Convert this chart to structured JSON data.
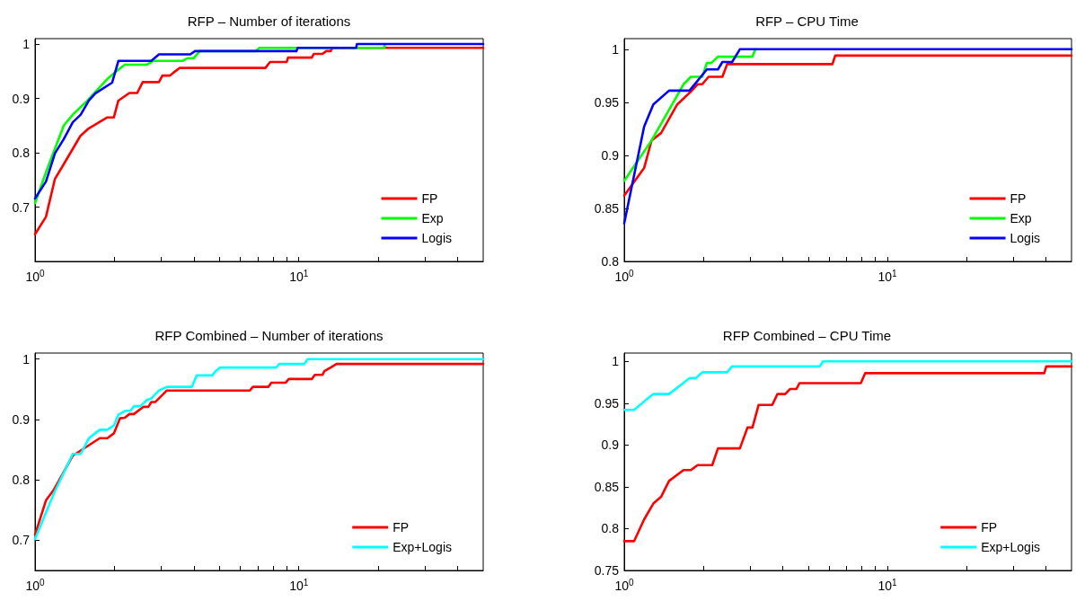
{
  "chart_data": [
    {
      "type": "line",
      "title": "RFP – Number of iterations",
      "legend": "bottom right",
      "marker": "none",
      "grid": false,
      "log": "x",
      "xlim": [
        1,
        50
      ],
      "xticks": [
        {
          "value": 1,
          "label": "10$^{0}$"
        },
        {
          "value": 2,
          "label": null
        },
        {
          "value": 3,
          "label": null
        },
        {
          "value": 4,
          "label": null
        },
        {
          "value": 5,
          "label": null
        },
        {
          "value": 6,
          "label": null
        },
        {
          "value": 7,
          "label": null
        },
        {
          "value": 8,
          "label": null
        },
        {
          "value": 9,
          "label": null
        },
        {
          "value": 10,
          "label": "10$^{1}$"
        },
        {
          "value": 20,
          "label": null
        },
        {
          "value": 30,
          "label": null
        },
        {
          "value": 40,
          "label": null
        }
      ],
      "ylim": [
        0.6,
        1.01
      ],
      "yticks": [
        0.7,
        0.8,
        0.9,
        1
      ],
      "series": [
        {
          "name": "FP",
          "color": "#ff0000",
          "x": [
            1,
            1.1,
            1.19,
            1.285,
            1.486,
            1.6,
            1.88,
            1.99,
            2.07,
            2.28,
            2.44,
            2.56,
            2.95,
            3.04,
            3.25,
            3.34,
            3.53,
            7.47,
            7.78,
            9.0,
            9.1,
            11.2,
            11.4,
            12.3,
            12.7,
            13.2,
            13.4,
            50
          ],
          "values": [
            0.65,
            0.682,
            0.752,
            0.779,
            0.831,
            0.845,
            0.865,
            0.865,
            0.896,
            0.91,
            0.91,
            0.93,
            0.93,
            0.942,
            0.942,
            0.947,
            0.956,
            0.956,
            0.967,
            0.967,
            0.975,
            0.975,
            0.982,
            0.982,
            0.987,
            0.987,
            0.993,
            0.993
          ]
        },
        {
          "name": "Exp",
          "color": "#00ff00",
          "x": [
            1,
            1.106,
            1.285,
            1.39,
            1.58,
            1.88,
            2.07,
            2.19,
            2.65,
            2.8,
            3.62,
            3.78,
            3.99,
            4.21,
            6.88,
            7.07,
            21.1,
            21.2
          ],
          "values": [
            0.707,
            0.767,
            0.85,
            0.87,
            0.896,
            0.936,
            0.953,
            0.962,
            0.962,
            0.969,
            0.969,
            0.974,
            0.974,
            0.987,
            0.987,
            0.993,
            0.993,
            1
          ]
        },
        {
          "name": "Logis",
          "color": "#0000ff",
          "x": [
            1,
            1.1,
            1.19,
            1.285,
            1.39,
            1.49,
            1.6,
            1.69,
            1.96,
            2.07,
            2.76,
            2.95,
            3.88,
            4.04,
            9.8,
            9.9,
            16.5,
            16.6,
            50
          ],
          "values": [
            0.716,
            0.747,
            0.799,
            0.825,
            0.856,
            0.87,
            0.896,
            0.909,
            0.929,
            0.969,
            0.969,
            0.981,
            0.981,
            0.987,
            0.987,
            0.993,
            0.993,
            1,
            1
          ]
        }
      ]
    },
    {
      "type": "line",
      "title": "RFP – CPU Time",
      "legend": "bottom right",
      "marker": "none",
      "grid": false,
      "log": "x",
      "xlim": [
        1,
        50
      ],
      "xticks": [
        {
          "value": 1,
          "label": "10$^{0}$"
        },
        {
          "value": 2,
          "label": null
        },
        {
          "value": 3,
          "label": null
        },
        {
          "value": 4,
          "label": null
        },
        {
          "value": 5,
          "label": null
        },
        {
          "value": 6,
          "label": null
        },
        {
          "value": 7,
          "label": null
        },
        {
          "value": 8,
          "label": null
        },
        {
          "value": 9,
          "label": null
        },
        {
          "value": 10,
          "label": "10$^{1}$"
        },
        {
          "value": 20,
          "label": null
        },
        {
          "value": 30,
          "label": null
        },
        {
          "value": 40,
          "label": null
        }
      ],
      "ylim": [
        0.8,
        1.01
      ],
      "yticks": [
        0.8,
        0.85,
        0.9,
        0.95,
        1
      ],
      "series": [
        {
          "name": "FP",
          "color": "#ff0000",
          "x": [
            1,
            1.19,
            1.27,
            1.38,
            1.59,
            1.79,
            1.9,
            1.98,
            2.09,
            2.36,
            2.46,
            6.18,
            6.33,
            50
          ],
          "values": [
            0.862,
            0.888,
            0.914,
            0.921,
            0.948,
            0.96,
            0.967,
            0.967,
            0.974,
            0.974,
            0.986,
            0.986,
            0.994,
            0.994
          ]
        },
        {
          "name": "Exp",
          "color": "#00ff00",
          "x": [
            1,
            1.27,
            1.68,
            1.79,
            1.98,
            2.06,
            2.14,
            2.27,
            3.07,
            3.15
          ],
          "values": [
            0.876,
            0.914,
            0.967,
            0.974,
            0.974,
            0.987,
            0.987,
            0.993,
            0.993,
            1
          ]
        },
        {
          "name": "Logis",
          "color": "#0000ff",
          "x": [
            1,
            1.19,
            1.29,
            1.48,
            1.77,
            2.06,
            2.27,
            2.36,
            2.57,
            2.75,
            50
          ],
          "values": [
            0.836,
            0.927,
            0.948,
            0.961,
            0.961,
            0.981,
            0.981,
            0.988,
            0.988,
            1,
            1
          ]
        }
      ]
    },
    {
      "type": "line",
      "title": "RFP Combined – Number of iterations",
      "legend": "bottom right",
      "marker": "none",
      "grid": false,
      "log": "x",
      "xlim": [
        1,
        50
      ],
      "xticks": [
        {
          "value": 1,
          "label": "10$^{0}$"
        },
        {
          "value": 2,
          "label": null
        },
        {
          "value": 3,
          "label": null
        },
        {
          "value": 4,
          "label": null
        },
        {
          "value": 5,
          "label": null
        },
        {
          "value": 6,
          "label": null
        },
        {
          "value": 7,
          "label": null
        },
        {
          "value": 8,
          "label": null
        },
        {
          "value": 9,
          "label": null
        },
        {
          "value": 10,
          "label": "10$^{1}$"
        },
        {
          "value": 20,
          "label": null
        },
        {
          "value": 30,
          "label": null
        },
        {
          "value": 40,
          "label": null
        }
      ],
      "ylim": [
        0.65,
        1.01
      ],
      "yticks": [
        0.7,
        0.8,
        0.9,
        1
      ],
      "series": [
        {
          "name": "FP",
          "color": "#ff0000",
          "x": [
            1,
            1.1,
            1.18,
            1.39,
            1.76,
            1.88,
            1.99,
            2.1,
            2.19,
            2.28,
            2.37,
            2.58,
            2.69,
            2.76,
            2.86,
            3.16,
            6.52,
            6.7,
            7.66,
            7.87,
            8.92,
            9.16,
            11.2,
            11.5,
            12.3,
            12.5,
            13.2,
            13.9,
            50
          ],
          "values": [
            0.709,
            0.766,
            0.784,
            0.84,
            0.869,
            0.869,
            0.877,
            0.902,
            0.903,
            0.909,
            0.909,
            0.921,
            0.921,
            0.929,
            0.929,
            0.948,
            0.948,
            0.954,
            0.954,
            0.961,
            0.961,
            0.967,
            0.967,
            0.974,
            0.974,
            0.98,
            0.986,
            0.992,
            0.992
          ]
        },
        {
          "name": "Exp+Logis",
          "color": "#00ffff",
          "x": [
            1,
            1.18,
            1.39,
            1.49,
            1.6,
            1.76,
            1.88,
            1.99,
            2.07,
            2.19,
            2.31,
            2.37,
            2.51,
            2.65,
            2.76,
            2.95,
            3.16,
            3.93,
            4.1,
            4.7,
            4.83,
            5.03,
            8.2,
            8.44,
            10.5,
            10.8,
            50
          ],
          "values": [
            0.702,
            0.778,
            0.843,
            0.843,
            0.869,
            0.883,
            0.883,
            0.89,
            0.908,
            0.914,
            0.915,
            0.922,
            0.922,
            0.932,
            0.935,
            0.948,
            0.954,
            0.954,
            0.973,
            0.973,
            0.98,
            0.986,
            0.986,
            0.992,
            0.992,
            1,
            1
          ]
        }
      ]
    },
    {
      "type": "line",
      "title": "RFP Combined – CPU Time",
      "legend": "bottom right",
      "marker": "none",
      "grid": false,
      "log": "x",
      "xlim": [
        1,
        50
      ],
      "xticks": [
        {
          "value": 1,
          "label": "10$^{0}$"
        },
        {
          "value": 2,
          "label": null
        },
        {
          "value": 3,
          "label": null
        },
        {
          "value": 4,
          "label": null
        },
        {
          "value": 5,
          "label": null
        },
        {
          "value": 6,
          "label": null
        },
        {
          "value": 7,
          "label": null
        },
        {
          "value": 8,
          "label": null
        },
        {
          "value": 9,
          "label": null
        },
        {
          "value": 10,
          "label": "10$^{1}$"
        },
        {
          "value": 20,
          "label": null
        },
        {
          "value": 30,
          "label": null
        },
        {
          "value": 40,
          "label": null
        }
      ],
      "ylim": [
        0.75,
        1.01
      ],
      "yticks": [
        0.75,
        0.8,
        0.85,
        0.9,
        0.95,
        1
      ],
      "series": [
        {
          "name": "FP",
          "color": "#ff0000",
          "x": [
            1,
            1.09,
            1.19,
            1.29,
            1.38,
            1.48,
            1.68,
            1.79,
            1.9,
            2.16,
            2.27,
            2.75,
            2.94,
            3.07,
            3.24,
            3.65,
            3.82,
            4.09,
            4.26,
            4.51,
            4.63,
            7.92,
            8.23,
            39.4,
            40.1,
            50
          ],
          "values": [
            0.785,
            0.785,
            0.811,
            0.83,
            0.838,
            0.857,
            0.87,
            0.87,
            0.876,
            0.876,
            0.896,
            0.896,
            0.921,
            0.921,
            0.948,
            0.948,
            0.961,
            0.961,
            0.967,
            0.967,
            0.974,
            0.974,
            0.986,
            0.986,
            0.994,
            0.994
          ]
        },
        {
          "name": "Exp+Logis",
          "color": "#00ffff",
          "x": [
            1,
            1.09,
            1.21,
            1.29,
            1.48,
            1.77,
            1.87,
            1.98,
            2.46,
            2.57,
            5.53,
            5.69,
            50
          ],
          "values": [
            0.942,
            0.942,
            0.954,
            0.961,
            0.961,
            0.98,
            0.98,
            0.987,
            0.987,
            0.994,
            0.994,
            1,
            1
          ]
        }
      ]
    }
  ]
}
